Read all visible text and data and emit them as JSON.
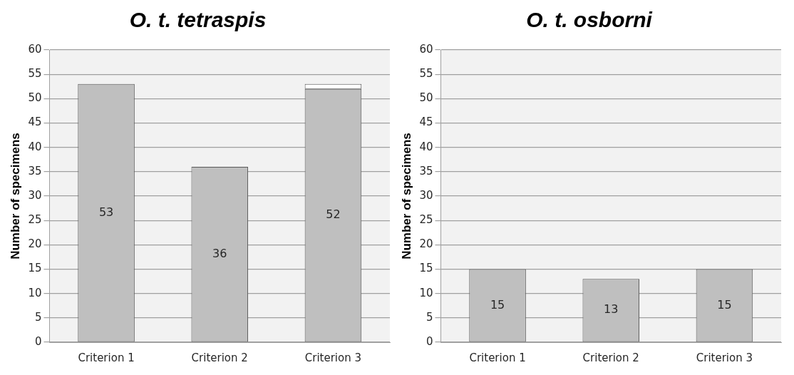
{
  "chart_data": [
    {
      "type": "bar",
      "title": "O. t. tetraspis",
      "ylabel": "Number of specimens",
      "categories": [
        "Criterion 1",
        "Criterion 2",
        "Criterion 3"
      ],
      "stacked": true,
      "series": [
        {
          "color": "#bfbfbf",
          "values": [
            53,
            36,
            52
          ],
          "value_labels": [
            "53",
            "36",
            "52"
          ]
        },
        {
          "color": "#ffffff",
          "values": [
            null,
            null,
            1
          ]
        }
      ],
      "ylim": [
        0,
        60
      ],
      "yticks": [
        0,
        5,
        10,
        15,
        20,
        25,
        30,
        35,
        40,
        45,
        50,
        55,
        60
      ],
      "grid": "y",
      "legend": false
    },
    {
      "type": "bar",
      "title": "O. t. osborni",
      "ylabel": "Number of specimens",
      "categories": [
        "Criterion 1",
        "Criterion 2",
        "Criterion 3"
      ],
      "series": [
        {
          "color": "#bfbfbf",
          "values": [
            15,
            13,
            15
          ]
        }
      ],
      "ylim": [
        0,
        60
      ],
      "yticks": [
        0,
        5,
        10,
        15,
        20,
        25,
        30,
        35,
        40,
        45,
        50,
        55,
        60
      ],
      "grid": "y",
      "legend": false,
      "data_labels": true
    }
  ]
}
